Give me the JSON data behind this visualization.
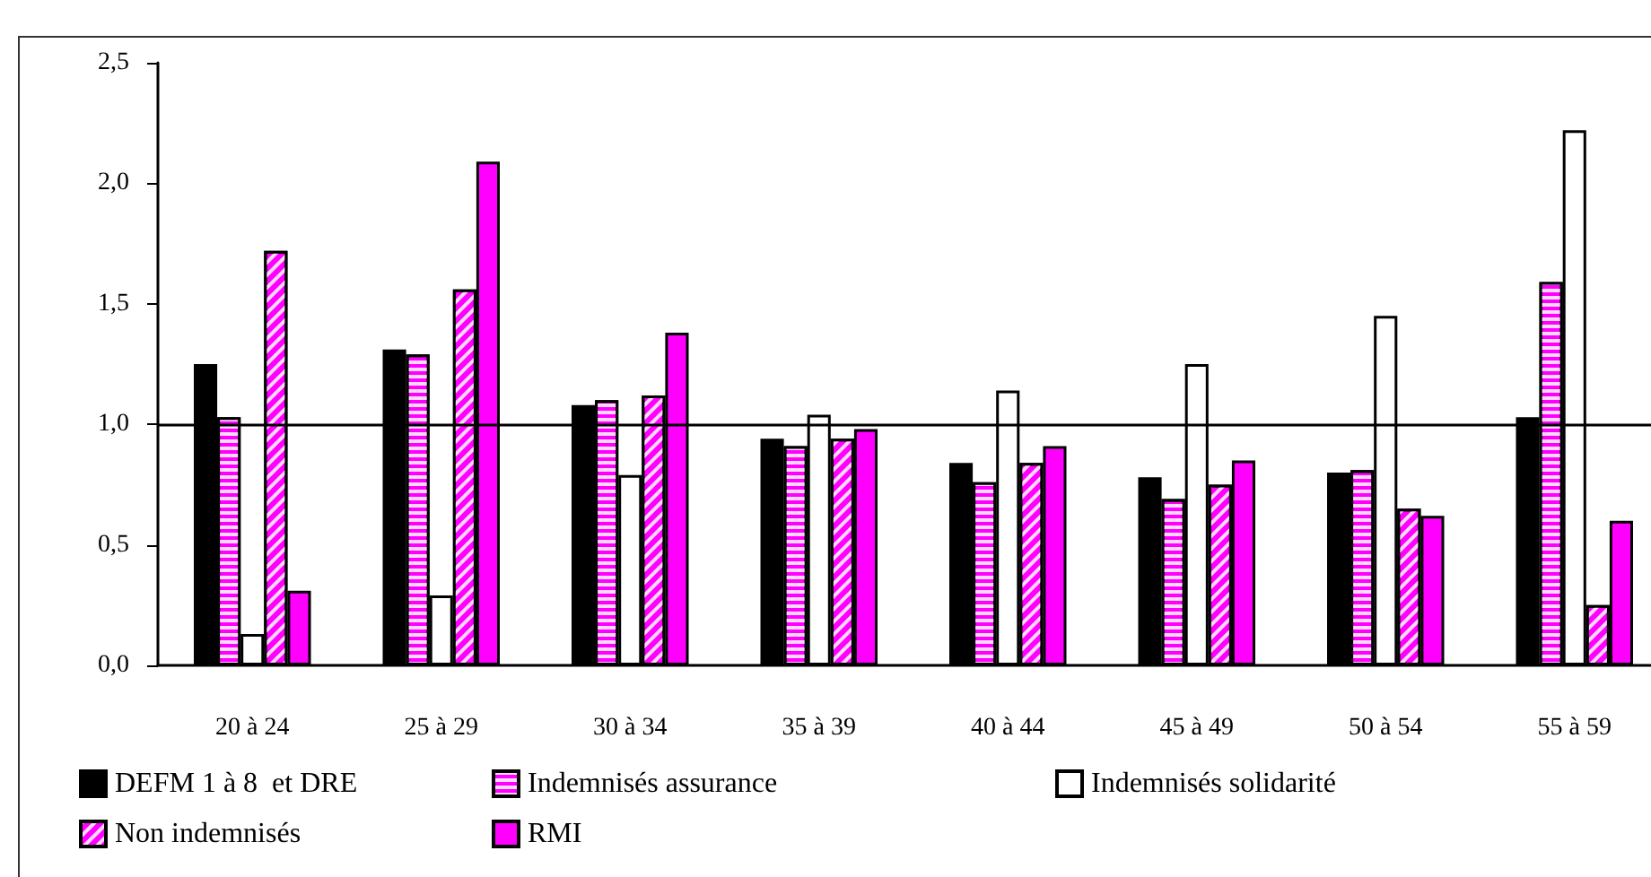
{
  "chart_data": {
    "type": "bar",
    "categories": [
      "20 à 24",
      "25 à 29",
      "30 à 34",
      "35 à 39",
      "40 à 44",
      "45 à 49",
      "50 à 54",
      "55 à 59"
    ],
    "series": [
      {
        "name": "DEFM 1 à 8  et DRE",
        "color": "#000000",
        "values": [
          1.25,
          1.31,
          1.08,
          0.94,
          0.84,
          0.78,
          0.8,
          1.03
        ]
      },
      {
        "name": "Indemnisés assurance",
        "color": "#ff00ff",
        "values": [
          1.03,
          1.29,
          1.1,
          0.91,
          0.76,
          0.69,
          0.81,
          1.59
        ]
      },
      {
        "name": "Indemnisés solidarité",
        "color": "#ffffff",
        "values": [
          0.13,
          0.29,
          0.79,
          1.04,
          1.14,
          1.25,
          1.45,
          2.22
        ]
      },
      {
        "name": "Non indemnisés",
        "color": "#ff00ff",
        "values": [
          1.72,
          1.56,
          1.12,
          0.94,
          0.84,
          0.75,
          0.65,
          0.25
        ]
      },
      {
        "name": "RMI",
        "color": "#ff00ff",
        "values": [
          0.31,
          2.09,
          1.38,
          0.98,
          0.91,
          0.85,
          0.62,
          0.6
        ]
      }
    ],
    "ylim": [
      0,
      2.5
    ],
    "yticks": [
      {
        "value": 0,
        "label": "0,0"
      },
      {
        "value": 0.5,
        "label": "0,5"
      },
      {
        "value": 1,
        "label": "1,0"
      },
      {
        "value": 1.5,
        "label": "1,5"
      },
      {
        "value": 2,
        "label": "2,0"
      },
      {
        "value": 2.5,
        "label": "2,5"
      }
    ],
    "ref_lines": [
      {
        "axis": "y",
        "value": 1,
        "label": null,
        "color": "#000000"
      }
    ],
    "grid": false,
    "legend": "bottom"
  }
}
